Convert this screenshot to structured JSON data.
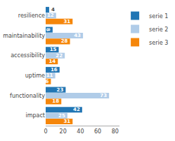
{
  "chart_data": {
    "type": "bar",
    "orientation": "horizontal",
    "categories": [
      "resilience",
      "maintainability",
      "accessibility",
      "uptime",
      "functionality",
      "impact"
    ],
    "series": [
      {
        "name": "serie 1",
        "color": "#2176B4",
        "values": [
          4,
          8,
          15,
          16,
          23,
          42
        ]
      },
      {
        "name": "serie 2",
        "color": "#B0CCE8",
        "values": [
          12,
          43,
          22,
          11,
          73,
          25
        ]
      },
      {
        "name": "serie 3",
        "color": "#F5860A",
        "values": [
          31,
          28,
          14,
          6,
          18,
          31
        ]
      }
    ],
    "xlim": [
      0,
      85
    ],
    "xticks": [
      0,
      20,
      40,
      60,
      80
    ],
    "grid": false,
    "legend": "upper right",
    "data_labels": true
  }
}
